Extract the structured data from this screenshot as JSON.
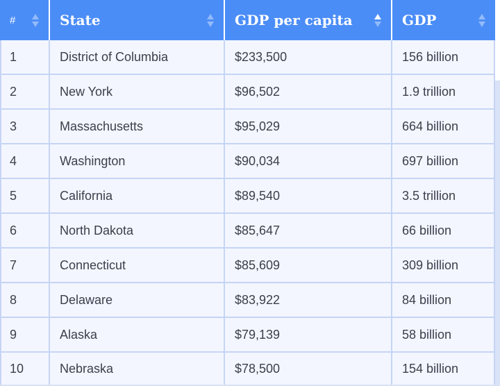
{
  "table": {
    "headers": {
      "rank": "#",
      "state": "State",
      "gdp_per_capita": "GDP per capita",
      "gdp": "GDP"
    },
    "sorted_column": "gdp_per_capita",
    "rows": [
      {
        "rank": "1",
        "state": "District of Columbia",
        "gdp_per_capita": "$233,500",
        "gdp": "156 billion"
      },
      {
        "rank": "2",
        "state": "New York",
        "gdp_per_capita": "$96,502",
        "gdp": "1.9 trillion"
      },
      {
        "rank": "3",
        "state": "Massachusetts",
        "gdp_per_capita": "$95,029",
        "gdp": "664 billion"
      },
      {
        "rank": "4",
        "state": "Washington",
        "gdp_per_capita": "$90,034",
        "gdp": "697 billion"
      },
      {
        "rank": "5",
        "state": "California",
        "gdp_per_capita": "$89,540",
        "gdp": "3.5 trillion"
      },
      {
        "rank": "6",
        "state": "North Dakota",
        "gdp_per_capita": "$85,647",
        "gdp": "66 billion"
      },
      {
        "rank": "7",
        "state": "Connecticut",
        "gdp_per_capita": "$85,609",
        "gdp": "309 billion"
      },
      {
        "rank": "8",
        "state": "Delaware",
        "gdp_per_capita": "$83,922",
        "gdp": "84 billion"
      },
      {
        "rank": "9",
        "state": "Alaska",
        "gdp_per_capita": "$79,139",
        "gdp": "58 billion"
      },
      {
        "rank": "10",
        "state": "Nebraska",
        "gdp_per_capita": "$78,500",
        "gdp": "154 billion"
      }
    ]
  },
  "colors": {
    "header_bg": "#4b8df7",
    "row_bg": "#f3f6ff",
    "grid": "#c6d4f5",
    "backdrop": "#d9e2f6"
  },
  "icons": {
    "sort": "sort-arrows-icon"
  }
}
